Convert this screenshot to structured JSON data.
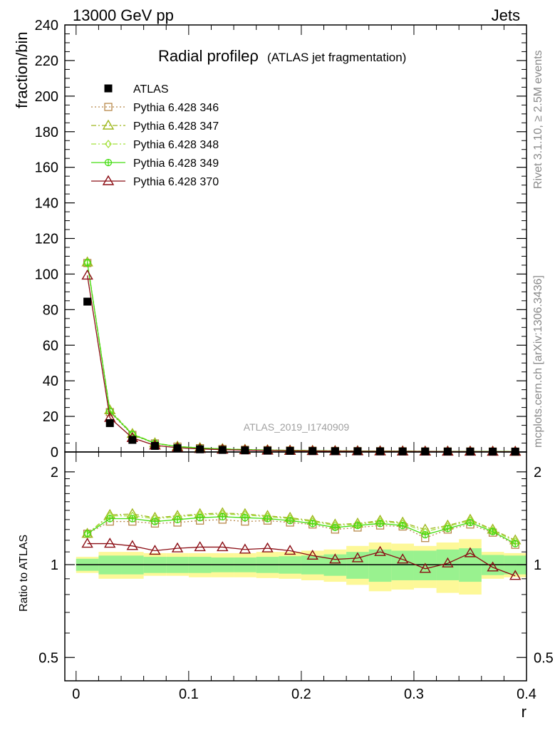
{
  "header": {
    "left": "13000 GeV pp",
    "right": "Jets"
  },
  "side_labels": {
    "rivet": "Rivet 3.1.10, ≥ 2.5M events",
    "mcplots": "mcplots.cern.ch [arXiv:1306.3436]"
  },
  "watermark": "ATLAS_2019_I1740909",
  "chart_data": [
    {
      "type": "line",
      "panel": "main",
      "title": "Radial profileρ",
      "subtitle": "(ATLAS jet fragmentation)",
      "xlabel": "r",
      "ylabel": "fraction/bin",
      "xlim": [
        -0.01,
        0.4
      ],
      "ylim": [
        0,
        240
      ],
      "yticks": [
        0,
        20,
        40,
        60,
        80,
        100,
        120,
        140,
        160,
        180,
        200,
        220,
        240
      ],
      "x": [
        0.01,
        0.03,
        0.05,
        0.07,
        0.09,
        0.11,
        0.13,
        0.15,
        0.17,
        0.19,
        0.21,
        0.23,
        0.25,
        0.27,
        0.29,
        0.31,
        0.33,
        0.35,
        0.37,
        0.39
      ],
      "legend_position": "top-left",
      "series": [
        {
          "name": "ATLAS",
          "color": "#000000",
          "marker": "square-filled",
          "line": "none",
          "values": [
            84.5,
            16.2,
            6.8,
            3.4,
            2.1,
            1.5,
            1.15,
            0.9,
            0.75,
            0.62,
            0.53,
            0.46,
            0.4,
            0.35,
            0.31,
            0.28,
            0.25,
            0.23,
            0.21,
            0.19
          ]
        },
        {
          "name": "Pythia 6.428 346",
          "color": "#b8894a",
          "marker": "square-open",
          "line": "dotted",
          "values": [
            106.2,
            22.4,
            9.6,
            4.8,
            3.0,
            2.15,
            1.65,
            1.25,
            1.05,
            0.86,
            0.72,
            0.6,
            0.53,
            0.48,
            0.42,
            0.34,
            0.33,
            0.32,
            0.27,
            0.22
          ]
        },
        {
          "name": "Pythia 6.428 347",
          "color": "#9fb81e",
          "marker": "triangle-open",
          "line": "dashdot",
          "values": [
            106.6,
            23.5,
            10.2,
            5.0,
            3.1,
            2.3,
            1.75,
            1.35,
            1.12,
            0.92,
            0.76,
            0.63,
            0.56,
            0.51,
            0.44,
            0.36,
            0.34,
            0.34,
            0.29,
            0.23
          ]
        },
        {
          "name": "Pythia 6.428 348",
          "color": "#a3e03c",
          "marker": "diamond-open",
          "line": "dashdot",
          "values": [
            106.5,
            23.3,
            10.1,
            5.0,
            3.1,
            2.28,
            1.74,
            1.34,
            1.11,
            0.91,
            0.75,
            0.62,
            0.55,
            0.5,
            0.43,
            0.35,
            0.34,
            0.33,
            0.28,
            0.23
          ]
        },
        {
          "name": "Pythia 6.428 349",
          "color": "#44dd11",
          "marker": "circle-plus",
          "line": "solid",
          "values": [
            106.4,
            22.9,
            9.9,
            4.9,
            3.05,
            2.22,
            1.7,
            1.31,
            1.08,
            0.89,
            0.73,
            0.61,
            0.54,
            0.49,
            0.42,
            0.34,
            0.33,
            0.32,
            0.27,
            0.22
          ]
        },
        {
          "name": "Pythia 6.428 370",
          "color": "#8b0d14",
          "marker": "triangle-open",
          "line": "solid",
          "values": [
            99.2,
            19.2,
            7.9,
            3.7,
            2.4,
            1.72,
            1.33,
            1.01,
            0.85,
            0.69,
            0.57,
            0.48,
            0.42,
            0.38,
            0.32,
            0.27,
            0.25,
            0.25,
            0.2,
            0.18
          ]
        }
      ]
    },
    {
      "type": "line",
      "panel": "ratio",
      "ylabel": "Ratio to ATLAS",
      "xlabel": "r",
      "scale": "log",
      "xlim": [
        -0.01,
        0.4
      ],
      "ylim": [
        0.42,
        2.32
      ],
      "xticks": [
        0,
        0.1,
        0.2,
        0.3,
        0.4
      ],
      "xtick_labels": [
        "0",
        "0.1",
        "0.2",
        "0.3",
        "0.4"
      ],
      "yticks": [
        0.5,
        1,
        2
      ],
      "ytick_labels": [
        "0.5",
        "1",
        "2"
      ],
      "x": [
        0.01,
        0.03,
        0.05,
        0.07,
        0.09,
        0.11,
        0.13,
        0.15,
        0.17,
        0.19,
        0.21,
        0.23,
        0.25,
        0.27,
        0.29,
        0.31,
        0.33,
        0.35,
        0.37,
        0.39
      ],
      "bands": {
        "stat_color": "#99f28f",
        "total_color": "#fdf898",
        "stat_lo": [
          0.955,
          0.93,
          0.93,
          0.94,
          0.94,
          0.94,
          0.945,
          0.945,
          0.94,
          0.935,
          0.93,
          0.92,
          0.9,
          0.88,
          0.89,
          0.89,
          0.89,
          0.88,
          0.925,
          0.93
        ],
        "stat_hi": [
          1.045,
          1.07,
          1.07,
          1.06,
          1.06,
          1.06,
          1.055,
          1.055,
          1.06,
          1.065,
          1.07,
          1.08,
          1.1,
          1.12,
          1.11,
          1.11,
          1.12,
          1.13,
          1.075,
          1.07
        ],
        "total_lo": [
          0.94,
          0.9,
          0.9,
          0.92,
          0.92,
          0.91,
          0.91,
          0.91,
          0.905,
          0.9,
          0.89,
          0.88,
          0.86,
          0.82,
          0.83,
          0.84,
          0.81,
          0.8,
          0.9,
          0.91
        ],
        "total_hi": [
          1.06,
          1.1,
          1.1,
          1.09,
          1.09,
          1.09,
          1.09,
          1.09,
          1.1,
          1.1,
          1.11,
          1.12,
          1.15,
          1.18,
          1.17,
          1.15,
          1.18,
          1.21,
          1.1,
          1.09
        ]
      },
      "series": [
        {
          "name": "Pythia 6.428 346",
          "color": "#b8894a",
          "marker": "square-open",
          "line": "dotted",
          "values": [
            1.26,
            1.38,
            1.38,
            1.36,
            1.37,
            1.39,
            1.4,
            1.38,
            1.39,
            1.37,
            1.35,
            1.3,
            1.32,
            1.34,
            1.33,
            1.22,
            1.3,
            1.35,
            1.27,
            1.16
          ]
        },
        {
          "name": "Pythia 6.428 347",
          "color": "#9fb81e",
          "marker": "triangle-open",
          "line": "dashdot",
          "values": [
            1.26,
            1.45,
            1.46,
            1.42,
            1.44,
            1.46,
            1.47,
            1.46,
            1.44,
            1.42,
            1.39,
            1.35,
            1.36,
            1.39,
            1.37,
            1.3,
            1.34,
            1.4,
            1.3,
            1.2
          ]
        },
        {
          "name": "Pythia 6.428 348",
          "color": "#a3e03c",
          "marker": "diamond-open",
          "line": "dashdot",
          "values": [
            1.26,
            1.44,
            1.44,
            1.41,
            1.43,
            1.45,
            1.46,
            1.45,
            1.43,
            1.41,
            1.38,
            1.34,
            1.35,
            1.38,
            1.36,
            1.28,
            1.33,
            1.39,
            1.29,
            1.19
          ]
        },
        {
          "name": "Pythia 6.428 349",
          "color": "#44dd11",
          "marker": "circle-plus",
          "line": "solid",
          "values": [
            1.26,
            1.41,
            1.41,
            1.38,
            1.4,
            1.42,
            1.43,
            1.42,
            1.41,
            1.39,
            1.36,
            1.32,
            1.34,
            1.36,
            1.34,
            1.25,
            1.31,
            1.37,
            1.28,
            1.17
          ]
        },
        {
          "name": "Pythia 6.428 370",
          "color": "#8b0d14",
          "marker": "triangle-open",
          "line": "solid",
          "values": [
            1.17,
            1.17,
            1.15,
            1.11,
            1.13,
            1.14,
            1.14,
            1.12,
            1.13,
            1.11,
            1.07,
            1.04,
            1.05,
            1.1,
            1.04,
            0.97,
            1.01,
            1.09,
            0.98,
            0.92
          ]
        }
      ]
    }
  ]
}
